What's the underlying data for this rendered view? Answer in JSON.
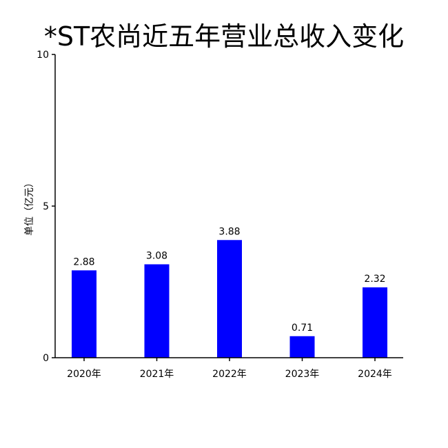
{
  "chart_data": {
    "type": "bar",
    "title": "*ST农尚近五年营业总收入变化",
    "xlabel": "",
    "ylabel": "单位（亿元）",
    "categories": [
      "2020年",
      "2021年",
      "2022年",
      "2023年",
      "2024年"
    ],
    "series": [
      {
        "values": [
          2.88,
          3.08,
          3.88,
          0.71,
          2.32
        ],
        "data_labels": [
          "2.88",
          "3.08",
          "3.88",
          "0.71",
          "2.32"
        ],
        "color": "#0000ff"
      }
    ],
    "ylim": [
      0,
      10
    ],
    "yticks": [
      0,
      5,
      10
    ],
    "ytick_labels": [
      "0",
      "5",
      "10"
    ],
    "grid": false,
    "legend": "none"
  }
}
